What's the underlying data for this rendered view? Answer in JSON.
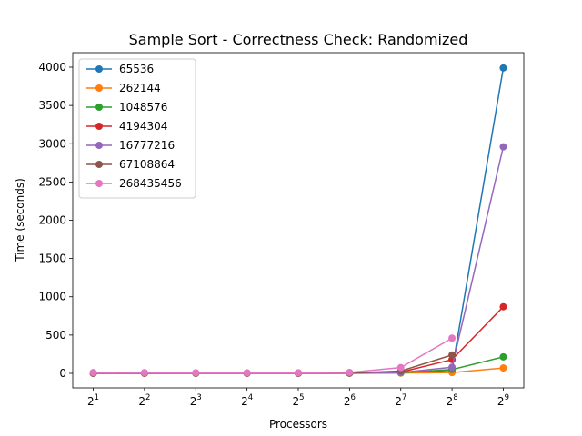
{
  "chart_data": {
    "type": "line",
    "title": "Sample Sort - Correctness Check: Randomized",
    "xlabel": "Processors",
    "ylabel": "Time (seconds)",
    "x_scale": "log2",
    "x": [
      2,
      4,
      8,
      16,
      32,
      64,
      128,
      256,
      512
    ],
    "x_tick_labels": [
      {
        "base": "2",
        "exp": "1"
      },
      {
        "base": "2",
        "exp": "2"
      },
      {
        "base": "2",
        "exp": "3"
      },
      {
        "base": "2",
        "exp": "4"
      },
      {
        "base": "2",
        "exp": "5"
      },
      {
        "base": "2",
        "exp": "6"
      },
      {
        "base": "2",
        "exp": "7"
      },
      {
        "base": "2",
        "exp": "8"
      },
      {
        "base": "2",
        "exp": "9"
      }
    ],
    "ylim": [
      -190,
      4190
    ],
    "y_ticks": [
      0,
      500,
      1000,
      1500,
      2000,
      2500,
      3000,
      3500,
      4000
    ],
    "y_tick_labels": [
      "0",
      "500",
      "1000",
      "1500",
      "2000",
      "2500",
      "3000",
      "3500",
      "4000"
    ],
    "grid": false,
    "legend_position": "upper left",
    "series": [
      {
        "name": "65536",
        "color": "#1f77b4",
        "values": [
          1,
          1,
          1,
          1,
          1,
          2,
          5,
          40,
          3990
        ]
      },
      {
        "name": "262144",
        "color": "#ff7f0e",
        "values": [
          1,
          1,
          1,
          1,
          1,
          2,
          4,
          10,
          70
        ]
      },
      {
        "name": "1048576",
        "color": "#2ca02c",
        "values": [
          2,
          2,
          2,
          2,
          2,
          3,
          8,
          50,
          215
        ]
      },
      {
        "name": "4194304",
        "color": "#d62728",
        "values": [
          3,
          3,
          3,
          3,
          3,
          4,
          15,
          180,
          870
        ]
      },
      {
        "name": "16777216",
        "color": "#9467bd",
        "values": [
          4,
          4,
          3,
          3,
          3,
          4,
          10,
          80,
          2960
        ]
      },
      {
        "name": "67108864",
        "color": "#8c564b",
        "values": [
          5,
          5,
          4,
          4,
          4,
          5,
          30,
          240,
          null
        ]
      },
      {
        "name": "268435456",
        "color": "#e377c2",
        "values": [
          10,
          9,
          8,
          7,
          8,
          12,
          75,
          460,
          null
        ]
      }
    ]
  }
}
